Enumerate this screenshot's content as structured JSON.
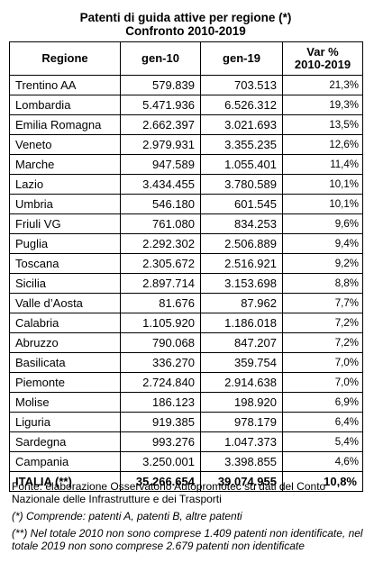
{
  "title": {
    "line1": "Patenti di guida attive per regione (*)",
    "line2": "Confronto 2010-2019"
  },
  "columns": {
    "region": "Regione",
    "gen10": "gen-10",
    "gen19": "gen-19",
    "var_line1": "Var %",
    "var_line2": "2010-2019"
  },
  "rows": [
    {
      "region": "Trentino AA",
      "gen10": "579.839",
      "gen19": "703.513",
      "var": "21,3%"
    },
    {
      "region": "Lombardia",
      "gen10": "5.471.936",
      "gen19": "6.526.312",
      "var": "19,3%"
    },
    {
      "region": "Emilia Romagna",
      "gen10": "2.662.397",
      "gen19": "3.021.693",
      "var": "13,5%"
    },
    {
      "region": "Veneto",
      "gen10": "2.979.931",
      "gen19": "3.355.235",
      "var": "12,6%"
    },
    {
      "region": "Marche",
      "gen10": "947.589",
      "gen19": "1.055.401",
      "var": "11,4%"
    },
    {
      "region": "Lazio",
      "gen10": "3.434.455",
      "gen19": "3.780.589",
      "var": "10,1%"
    },
    {
      "region": "Umbria",
      "gen10": "546.180",
      "gen19": "601.545",
      "var": "10,1%"
    },
    {
      "region": "Friuli VG",
      "gen10": "761.080",
      "gen19": "834.253",
      "var": "9,6%"
    },
    {
      "region": "Puglia",
      "gen10": "2.292.302",
      "gen19": "2.506.889",
      "var": "9,4%"
    },
    {
      "region": "Toscana",
      "gen10": "2.305.672",
      "gen19": "2.516.921",
      "var": "9,2%"
    },
    {
      "region": "Sicilia",
      "gen10": "2.897.714",
      "gen19": "3.153.698",
      "var": "8,8%"
    },
    {
      "region": "Valle d’Aosta",
      "gen10": "81.676",
      "gen19": "87.962",
      "var": "7,7%"
    },
    {
      "region": "Calabria",
      "gen10": "1.105.920",
      "gen19": "1.186.018",
      "var": "7,2%"
    },
    {
      "region": "Abruzzo",
      "gen10": "790.068",
      "gen19": "847.207",
      "var": "7,2%"
    },
    {
      "region": "Basilicata",
      "gen10": "336.270",
      "gen19": "359.754",
      "var": "7,0%"
    },
    {
      "region": "Piemonte",
      "gen10": "2.724.840",
      "gen19": "2.914.638",
      "var": "7,0%"
    },
    {
      "region": "Molise",
      "gen10": "186.123",
      "gen19": "198.920",
      "var": "6,9%"
    },
    {
      "region": "Liguria",
      "gen10": "919.385",
      "gen19": "978.179",
      "var": "6,4%"
    },
    {
      "region": "Sardegna",
      "gen10": "993.276",
      "gen19": "1.047.373",
      "var": "5,4%"
    },
    {
      "region": "Campania",
      "gen10": "3.250.001",
      "gen19": "3.398.855",
      "var": "4,6%"
    }
  ],
  "total": {
    "region": "ITALIA (**)",
    "gen10": "35.266.654",
    "gen19": "39.074.955",
    "var": "10,8%"
  },
  "notes": {
    "source": "Fonte: elaborazione Osservatorio Autopromotec su dati del Conto Nazionale delle Infrastrutture e dei Trasporti",
    "note1": "(*) Comprende: patenti A, patenti B, altre patenti",
    "note2": "(**) Nel totale 2010 non sono comprese 1.409 patenti non identificate, nel totale 2019 non sono comprese 2.679 patenti non identificate"
  }
}
